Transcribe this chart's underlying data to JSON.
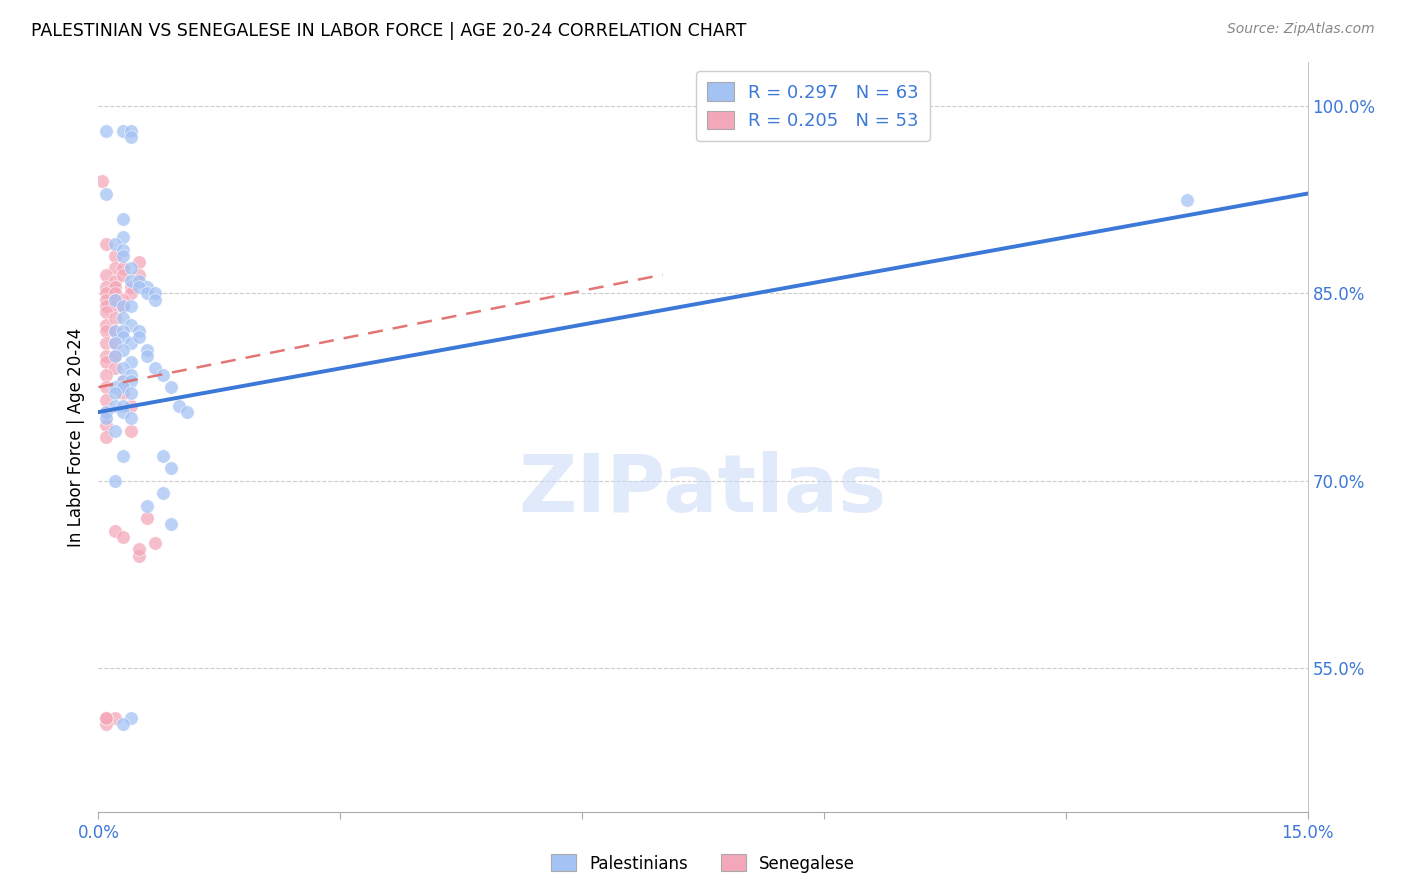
{
  "title": "PALESTINIAN VS SENEGALESE IN LABOR FORCE | AGE 20-24 CORRELATION CHART",
  "source": "Source: ZipAtlas.com",
  "ylabel": "In Labor Force | Age 20-24",
  "R_blue": 0.297,
  "N_blue": 63,
  "R_pink": 0.205,
  "N_pink": 53,
  "legend_label_blue": "Palestinians",
  "legend_label_pink": "Senegalese",
  "blue_color": "#a4c2f4",
  "pink_color": "#f4a7b9",
  "blue_line_color": "#3c78d8",
  "pink_line_color": "#e06666",
  "grid_color": "#cccccc",
  "watermark_text": "ZIPatlas",
  "watermark_color": "#c9daf8",
  "xmin": 0.0,
  "xmax": 0.15,
  "ymin": 0.435,
  "ymax": 1.035,
  "yticks": [
    0.55,
    0.7,
    0.85,
    1.0
  ],
  "xtick_positions": [
    0.0,
    0.15
  ],
  "xtick_labels": [
    "0.0%",
    "15.0%"
  ],
  "blue_line_x0": 0.0,
  "blue_line_y0": 0.755,
  "blue_line_x1": 0.15,
  "blue_line_y1": 0.93,
  "pink_line_x0": 0.0,
  "pink_line_y0": 0.775,
  "pink_line_x1": 0.07,
  "pink_line_y1": 0.865,
  "blue_scatter": [
    [
      0.001,
      0.98
    ],
    [
      0.003,
      0.98
    ],
    [
      0.004,
      0.98
    ],
    [
      0.004,
      0.975
    ],
    [
      0.001,
      0.93
    ],
    [
      0.003,
      0.91
    ],
    [
      0.003,
      0.895
    ],
    [
      0.002,
      0.89
    ],
    [
      0.003,
      0.885
    ],
    [
      0.003,
      0.88
    ],
    [
      0.004,
      0.87
    ],
    [
      0.004,
      0.86
    ],
    [
      0.005,
      0.86
    ],
    [
      0.006,
      0.855
    ],
    [
      0.005,
      0.855
    ],
    [
      0.006,
      0.85
    ],
    [
      0.007,
      0.85
    ],
    [
      0.007,
      0.845
    ],
    [
      0.002,
      0.845
    ],
    [
      0.003,
      0.84
    ],
    [
      0.004,
      0.84
    ],
    [
      0.003,
      0.83
    ],
    [
      0.004,
      0.825
    ],
    [
      0.002,
      0.82
    ],
    [
      0.003,
      0.82
    ],
    [
      0.005,
      0.82
    ],
    [
      0.003,
      0.815
    ],
    [
      0.004,
      0.81
    ],
    [
      0.005,
      0.815
    ],
    [
      0.002,
      0.81
    ],
    [
      0.003,
      0.805
    ],
    [
      0.006,
      0.805
    ],
    [
      0.002,
      0.8
    ],
    [
      0.004,
      0.795
    ],
    [
      0.006,
      0.8
    ],
    [
      0.003,
      0.79
    ],
    [
      0.004,
      0.785
    ],
    [
      0.007,
      0.79
    ],
    [
      0.003,
      0.78
    ],
    [
      0.004,
      0.78
    ],
    [
      0.008,
      0.785
    ],
    [
      0.002,
      0.775
    ],
    [
      0.003,
      0.775
    ],
    [
      0.009,
      0.775
    ],
    [
      0.002,
      0.77
    ],
    [
      0.004,
      0.77
    ],
    [
      0.01,
      0.76
    ],
    [
      0.002,
      0.76
    ],
    [
      0.003,
      0.76
    ],
    [
      0.011,
      0.755
    ],
    [
      0.001,
      0.755
    ],
    [
      0.003,
      0.755
    ],
    [
      0.001,
      0.75
    ],
    [
      0.004,
      0.75
    ],
    [
      0.002,
      0.74
    ],
    [
      0.008,
      0.72
    ],
    [
      0.003,
      0.72
    ],
    [
      0.009,
      0.71
    ],
    [
      0.002,
      0.7
    ],
    [
      0.008,
      0.69
    ],
    [
      0.004,
      0.51
    ],
    [
      0.003,
      0.505
    ],
    [
      0.006,
      0.68
    ],
    [
      0.009,
      0.665
    ],
    [
      0.135,
      0.925
    ]
  ],
  "pink_scatter": [
    [
      0.0005,
      0.94
    ],
    [
      0.001,
      0.89
    ],
    [
      0.002,
      0.88
    ],
    [
      0.002,
      0.87
    ],
    [
      0.001,
      0.865
    ],
    [
      0.002,
      0.86
    ],
    [
      0.003,
      0.87
    ],
    [
      0.001,
      0.855
    ],
    [
      0.002,
      0.855
    ],
    [
      0.003,
      0.865
    ],
    [
      0.001,
      0.85
    ],
    [
      0.002,
      0.85
    ],
    [
      0.004,
      0.855
    ],
    [
      0.001,
      0.845
    ],
    [
      0.002,
      0.845
    ],
    [
      0.004,
      0.85
    ],
    [
      0.001,
      0.84
    ],
    [
      0.002,
      0.84
    ],
    [
      0.003,
      0.845
    ],
    [
      0.001,
      0.835
    ],
    [
      0.003,
      0.84
    ],
    [
      0.005,
      0.875
    ],
    [
      0.001,
      0.825
    ],
    [
      0.002,
      0.83
    ],
    [
      0.005,
      0.865
    ],
    [
      0.001,
      0.82
    ],
    [
      0.002,
      0.82
    ],
    [
      0.001,
      0.81
    ],
    [
      0.002,
      0.81
    ],
    [
      0.001,
      0.8
    ],
    [
      0.002,
      0.8
    ],
    [
      0.001,
      0.795
    ],
    [
      0.002,
      0.79
    ],
    [
      0.001,
      0.785
    ],
    [
      0.003,
      0.78
    ],
    [
      0.001,
      0.775
    ],
    [
      0.003,
      0.77
    ],
    [
      0.001,
      0.765
    ],
    [
      0.004,
      0.76
    ],
    [
      0.001,
      0.755
    ],
    [
      0.004,
      0.74
    ],
    [
      0.001,
      0.745
    ],
    [
      0.001,
      0.735
    ],
    [
      0.002,
      0.66
    ],
    [
      0.003,
      0.655
    ],
    [
      0.005,
      0.64
    ],
    [
      0.006,
      0.67
    ],
    [
      0.002,
      0.51
    ],
    [
      0.001,
      0.505
    ],
    [
      0.001,
      0.51
    ],
    [
      0.005,
      0.645
    ],
    [
      0.007,
      0.65
    ],
    [
      0.001,
      0.51
    ]
  ]
}
